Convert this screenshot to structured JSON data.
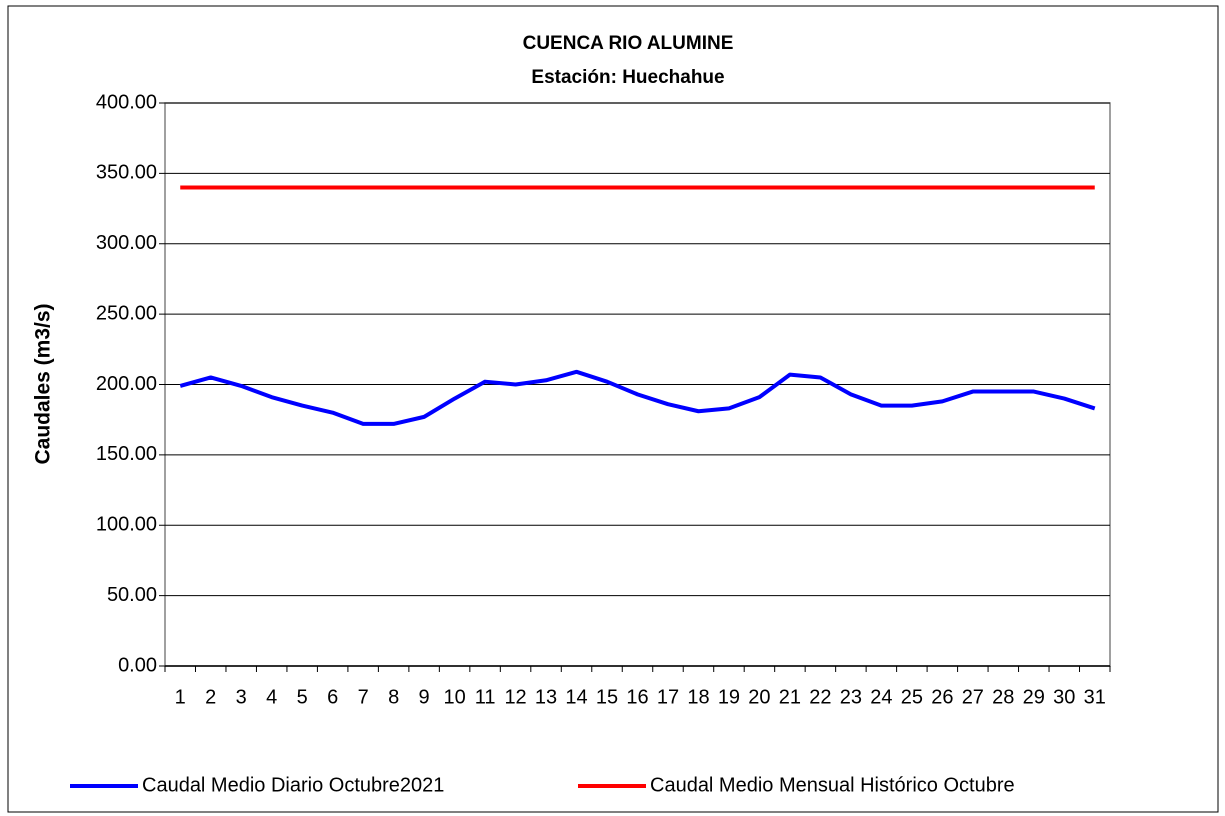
{
  "chart_data": {
    "type": "line",
    "title": "CUENCA RIO ALUMINE",
    "subtitle": "Estación: Huechahue",
    "y_label": "Caudales (m3/s)",
    "categories": [
      "1",
      "2",
      "3",
      "4",
      "5",
      "6",
      "7",
      "8",
      "9",
      "10",
      "11",
      "12",
      "13",
      "14",
      "15",
      "16",
      "17",
      "18",
      "19",
      "20",
      "21",
      "22",
      "23",
      "24",
      "25",
      "26",
      "27",
      "28",
      "29",
      "30",
      "31"
    ],
    "series": [
      {
        "name": "Caudal Medio Diario Octubre2021",
        "color": "#0000ff",
        "values": [
          199,
          205,
          199,
          191,
          185,
          180,
          172,
          172,
          177,
          190,
          202,
          200,
          203,
          209,
          202,
          193,
          186,
          181,
          183,
          191,
          207,
          205,
          193,
          185,
          185,
          188,
          195,
          195,
          195,
          190,
          183
        ]
      },
      {
        "name": "Caudal Medio Mensual Histórico Octubre",
        "color": "#ff0000",
        "values": [
          340,
          340,
          340,
          340,
          340,
          340,
          340,
          340,
          340,
          340,
          340,
          340,
          340,
          340,
          340,
          340,
          340,
          340,
          340,
          340,
          340,
          340,
          340,
          340,
          340,
          340,
          340,
          340,
          340,
          340,
          340
        ]
      }
    ],
    "ylim": [
      0,
      400
    ],
    "yticks": [
      {
        "value": 0,
        "label": "0.00"
      },
      {
        "value": 50,
        "label": "50.00"
      },
      {
        "value": 100,
        "label": "100.00"
      },
      {
        "value": 150,
        "label": "150.00"
      },
      {
        "value": 200,
        "label": "200.00"
      },
      {
        "value": 250,
        "label": "250.00"
      },
      {
        "value": 300,
        "label": "300.00"
      },
      {
        "value": 350,
        "label": "350.00"
      },
      {
        "value": 400,
        "label": "400.00"
      }
    ],
    "grid": true,
    "legend": "bottom"
  }
}
